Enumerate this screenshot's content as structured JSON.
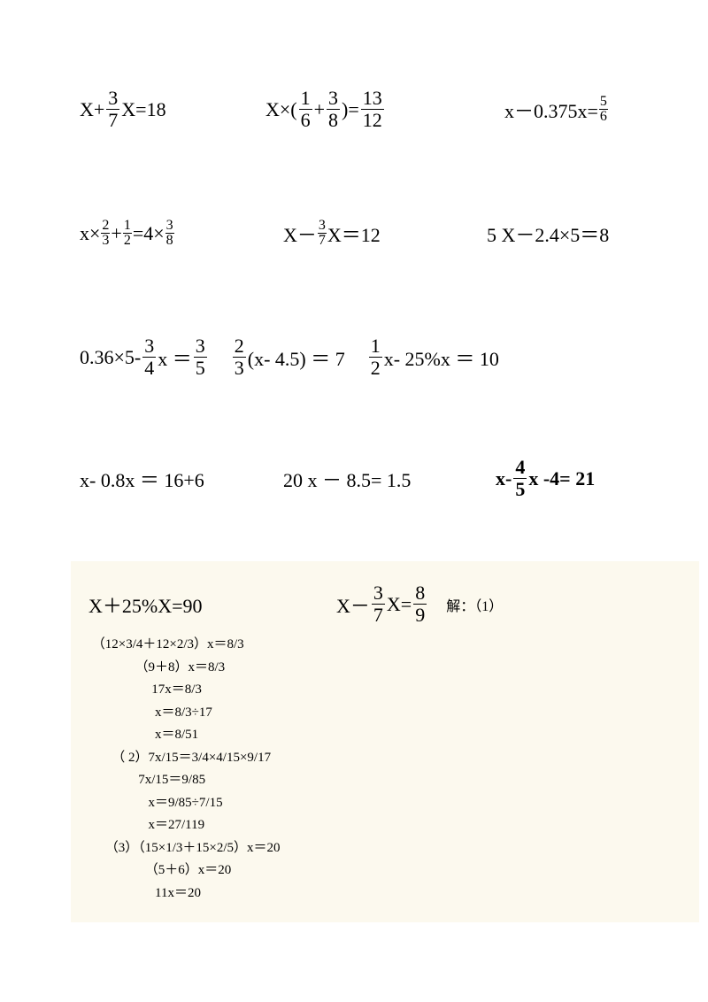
{
  "row1": {
    "eq1": {
      "pre": "X+",
      "f1n": "3",
      "f1d": "7",
      "post": "X=18"
    },
    "eq2": {
      "pre": "X×( ",
      "f1n": "1",
      "f1d": "6",
      "mid": "+ ",
      "f2n": "3",
      "f2d": "8",
      "mid2": ")=",
      "f3n": "13",
      "f3d": "12"
    },
    "eq3": {
      "pre": "x－0.375x=",
      "f1n": "5",
      "f1d": "6"
    }
  },
  "row2": {
    "eq1": {
      "pre": "x×",
      "f1n": "2",
      "f1d": "3",
      "mid": "+",
      "f2n": "1",
      "f2d": "2",
      "mid2": "=4×",
      "f3n": "3",
      "f3d": "8"
    },
    "eq2": {
      "pre": "X－",
      "f1n": "3",
      "f1d": "7",
      "post": "X＝12"
    },
    "eq3": {
      "text": "5 X－2.4×5＝8"
    }
  },
  "row3": {
    "eq1": {
      "pre": "0.36×5- ",
      "f1n": "3",
      "f1d": "4",
      "post": "x ＝ ",
      "f2n": "3",
      "f2d": "5"
    },
    "eq2": {
      "f1n": "2",
      "f1d": "3",
      "post": "(x- 4.5) ＝ 7"
    },
    "eq3": {
      "f1n": "1",
      "f1d": "2",
      "post": "x- 25%x ＝ 10"
    }
  },
  "row4": {
    "eq1": {
      "text": "x- 0.8x ＝ 16+6"
    },
    "eq2": {
      "text": "20 x － 8.5= 1.5"
    },
    "eq3": {
      "pre": "x- ",
      "f1n": "4",
      "f1d": "5",
      "post": "x -4= 21"
    }
  },
  "solution": {
    "top1": "X＋25%X=90",
    "top2_pre": "X－",
    "top2_f1n": "3",
    "top2_f1d": "7",
    "top2_mid": "X= ",
    "top2_f2n": "8",
    "top2_f2d": "9",
    "label": "解：（1）",
    "lines": [
      " （12×3/4＋12×2/3）x＝8/3",
      "              （9＋8）x＝8/3",
      "                   17x＝8/3",
      "                    x＝8/3÷17",
      "                    x＝8/51",
      "       （ 2）7x/15＝3/4×4/15×9/17",
      "               7x/15＝9/85",
      "                  x＝9/85÷7/15",
      "                  x＝27/119",
      "     （3）（15×1/3＋15×2/5）x＝20",
      "                 （5＋6）x＝20",
      "                    11x＝20"
    ]
  }
}
